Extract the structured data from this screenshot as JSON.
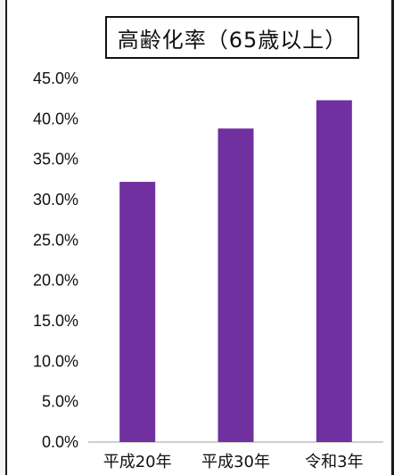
{
  "chart_data": {
    "type": "bar",
    "title": "高齢化率（65歳以上）",
    "categories": [
      "平成20年",
      "平成30年",
      "令和3年"
    ],
    "values": [
      32.2,
      38.8,
      42.3
    ],
    "ylim": [
      0,
      45
    ],
    "ytick_step": 5,
    "ytick_labels": [
      "0.0%",
      "5.0%",
      "10.0%",
      "15.0%",
      "20.0%",
      "25.0%",
      "30.0%",
      "35.0%",
      "40.0%",
      "45.0%"
    ],
    "xlabel": "",
    "ylabel": "",
    "grid": false,
    "bar_color": "#7030a0"
  }
}
